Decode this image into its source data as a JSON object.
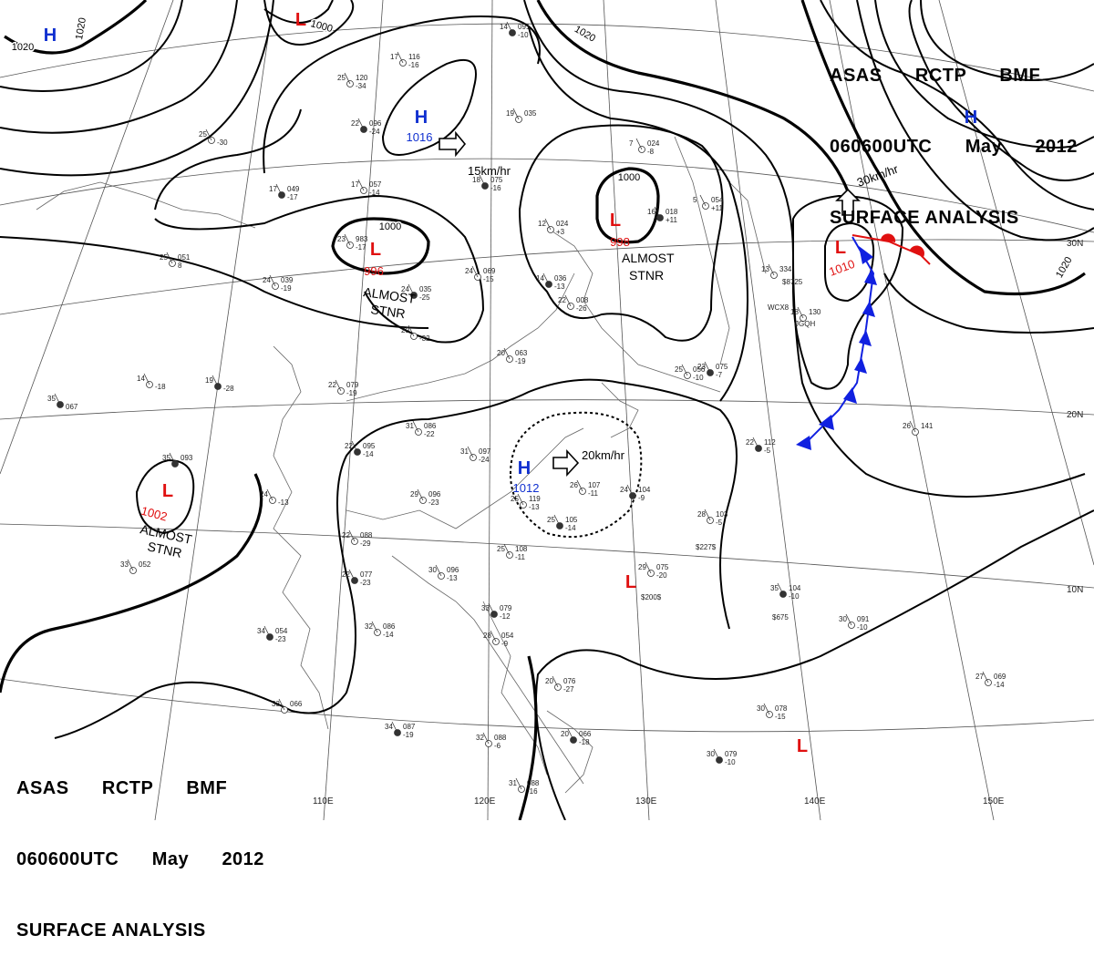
{
  "header": {
    "line1": [
      "ASAS",
      "RCTP",
      "BMF"
    ],
    "line2": [
      "060600UTC",
      "May",
      "2012"
    ],
    "line3": "SURFACE ANALYSIS"
  },
  "colors": {
    "low": "#e01010",
    "high": "#1030d0",
    "cold_front": "#1020e0",
    "warm_front": "#e01010",
    "line": "#000000"
  },
  "grid_labels": {
    "longitudes": [
      "110E",
      "120E",
      "130E",
      "140E",
      "150E"
    ],
    "latitudes": [
      "30N",
      "20N",
      "10N"
    ]
  },
  "pressure_centers": [
    {
      "type": "H",
      "value": ""
    },
    {
      "type": "L",
      "value": ""
    },
    {
      "type": "H",
      "value": "1016"
    },
    {
      "type": "L",
      "value": "996"
    },
    {
      "type": "L",
      "value": "998"
    },
    {
      "type": "L",
      "value": "1010"
    },
    {
      "type": "H",
      "value": ""
    },
    {
      "type": "L",
      "value": "1002"
    },
    {
      "type": "H",
      "value": "1012"
    },
    {
      "type": "L",
      "value": ""
    },
    {
      "type": "L",
      "value": ""
    }
  ],
  "isobar_labels": [
    "1020",
    "1000",
    "1020",
    "1000",
    "1000",
    "1020",
    "1020"
  ],
  "movement_labels": [
    "15km/hr",
    "30km/hr",
    "20km/hr"
  ],
  "stationary_labels": [
    "ALMOST\nSTNR",
    "ALMOST\nSTNR",
    "ALMOST\nSTNR"
  ],
  "ship_labels": [
    "WCX8",
    "JGQH",
    "$8725",
    "$227$",
    "$200$",
    "$675"
  ],
  "stations": [
    [
      "14",
      "091",
      "-10"
    ],
    [
      "17",
      "116",
      "-16"
    ],
    [
      "25",
      "120",
      "-34"
    ],
    [
      "22",
      "096",
      "-24"
    ],
    [
      "25",
      "",
      "-30"
    ],
    [
      "17",
      "057",
      "-14"
    ],
    [
      "17",
      "049",
      "-17"
    ],
    [
      "23",
      "983",
      "-17"
    ],
    [
      "24",
      "039",
      "-19"
    ],
    [
      "24",
      "035",
      "-25"
    ],
    [
      "29",
      "",
      "-32"
    ],
    [
      "19",
      "035",
      ""
    ],
    [
      "18",
      "075",
      "-16"
    ],
    [
      "24",
      "069",
      "-15"
    ],
    [
      "12",
      "024",
      "+3"
    ],
    [
      "14",
      "036",
      "-13"
    ],
    [
      "22",
      "008",
      "-26"
    ],
    [
      "7",
      "024",
      "-8"
    ],
    [
      "16",
      "018",
      "+11"
    ],
    [
      "5",
      "054",
      "+11"
    ],
    [
      "20",
      "063",
      "-19"
    ],
    [
      "35",
      "",
      "067"
    ],
    [
      "25",
      "051",
      "8"
    ],
    [
      "14",
      "",
      "-18"
    ],
    [
      "19",
      "",
      "-28"
    ],
    [
      "22",
      "079",
      "-19"
    ],
    [
      "31",
      "086",
      "-22"
    ],
    [
      "22",
      "095",
      "-14"
    ],
    [
      "31",
      "097",
      "-24"
    ],
    [
      "29",
      "096",
      "-23"
    ],
    [
      "35",
      "093",
      ""
    ],
    [
      "24",
      "",
      "-13"
    ],
    [
      "22",
      "088",
      "-29"
    ],
    [
      "22",
      "077",
      "-23"
    ],
    [
      "30",
      "096",
      "-13"
    ],
    [
      "32",
      "086",
      "-14"
    ],
    [
      "34",
      "054",
      "-23"
    ],
    [
      "33",
      "052",
      ""
    ],
    [
      "33",
      "066",
      ""
    ],
    [
      "34",
      "087",
      "-19"
    ],
    [
      "32",
      "088",
      "-6"
    ],
    [
      "31",
      "088",
      "-16"
    ],
    [
      "33",
      "079",
      "-12"
    ],
    [
      "28",
      "054",
      "-9"
    ],
    [
      "26",
      "107",
      "-11"
    ],
    [
      "24",
      "104",
      "-9"
    ],
    [
      "28",
      "103",
      "-5"
    ],
    [
      "29",
      "075",
      "-20"
    ],
    [
      "35",
      "104",
      "-10"
    ],
    [
      "30",
      "091",
      "-10"
    ],
    [
      "30",
      "078",
      "-15"
    ],
    [
      "30",
      "079",
      "-10"
    ],
    [
      "27",
      "069",
      "-14"
    ],
    [
      "26",
      "141",
      ""
    ],
    [
      "22",
      "112",
      "-5"
    ],
    [
      "13",
      "334",
      ""
    ],
    [
      "18",
      "130",
      ""
    ],
    [
      "23",
      "075",
      "-7"
    ],
    [
      "25",
      "056",
      "-10"
    ],
    [
      "25",
      "108",
      "-11"
    ],
    [
      "25",
      "105",
      "-14"
    ],
    [
      "25",
      "119",
      "-13"
    ],
    [
      "20",
      "076",
      "-27"
    ],
    [
      "20",
      "066",
      "-18"
    ]
  ]
}
